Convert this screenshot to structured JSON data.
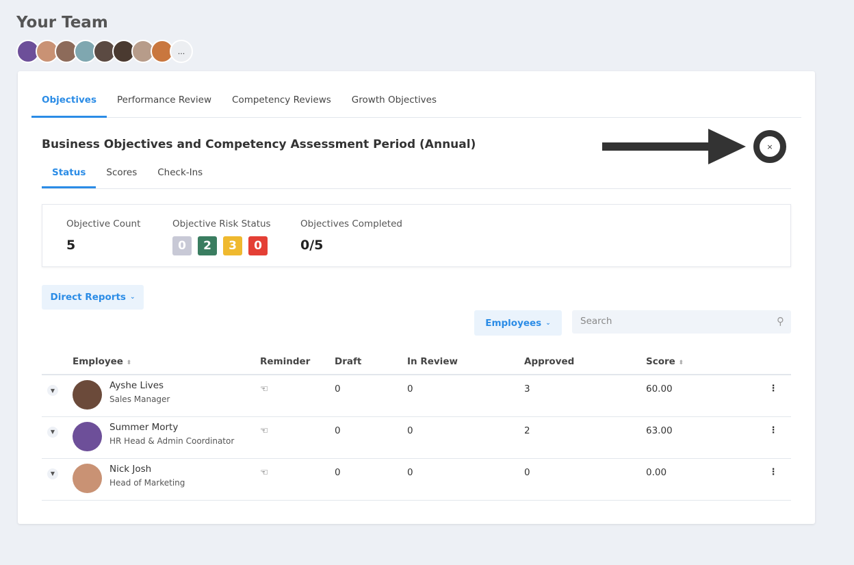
{
  "page_title": "Your Team",
  "team_avatars": [
    {
      "color": "#6d4f99"
    },
    {
      "color": "#c99274"
    },
    {
      "color": "#8d6b5a"
    },
    {
      "color": "#7fa7b0"
    },
    {
      "color": "#5b4a42"
    },
    {
      "color": "#4a3a30"
    },
    {
      "color": "#b79c8a"
    },
    {
      "color": "#c9773e"
    }
  ],
  "more_label": "...",
  "tabs": [
    "Objectives",
    "Performance Review",
    "Competency Reviews",
    "Growth Objectives"
  ],
  "period_title": "Business Objectives and Competency Assessment Period (Annual)",
  "close_label": "×",
  "subtabs": [
    "Status",
    "Scores",
    "Check-Ins"
  ],
  "stats": {
    "count_label": "Objective Count",
    "count": "5",
    "risk_label": "Objective Risk Status",
    "risk": [
      {
        "value": "0",
        "color": "#c8c9d6"
      },
      {
        "value": "2",
        "color": "#3a7d60"
      },
      {
        "value": "3",
        "color": "#efb92f"
      },
      {
        "value": "0",
        "color": "#e43f35"
      }
    ],
    "completed_label": "Objectives Completed",
    "completed": "0/5"
  },
  "direct_reports_label": "Direct Reports",
  "employees_label": "Employees",
  "search_placeholder": "Search",
  "table": {
    "headers": [
      "Employee",
      "Reminder",
      "Draft",
      "In Review",
      "Approved",
      "Score"
    ],
    "rows": [
      {
        "name": "Ayshe Lives",
        "role": "Sales Manager",
        "draft": "0",
        "review": "0",
        "approved": "3",
        "score": "60.00",
        "color": "#6b4a3a"
      },
      {
        "name": "Summer Morty",
        "role": "HR Head & Admin Coordinator",
        "draft": "0",
        "review": "0",
        "approved": "2",
        "score": "63.00",
        "color": "#6d4f99"
      },
      {
        "name": "Nick Josh",
        "role": "Head of Marketing",
        "draft": "0",
        "review": "0",
        "approved": "0",
        "score": "0.00",
        "color": "#c99274"
      }
    ]
  }
}
